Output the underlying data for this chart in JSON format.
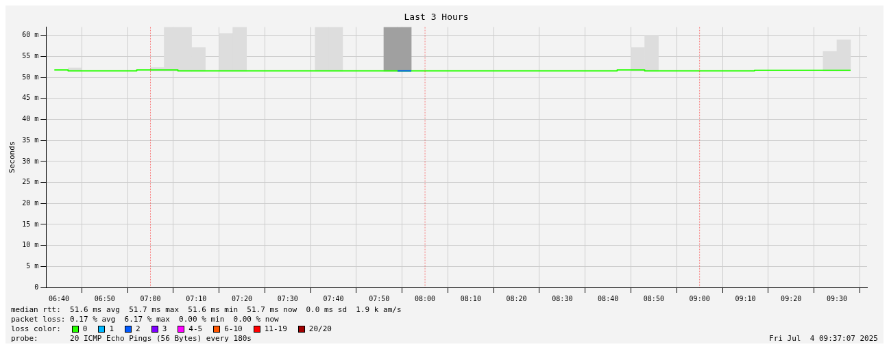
{
  "chart_data": {
    "type": "step",
    "title": "Last 3 Hours",
    "ylabel": "Seconds",
    "xlim": [
      6.62,
      9.61
    ],
    "xticks": [
      {
        "value": 6.6667,
        "label": "06:40"
      },
      {
        "value": 6.8333,
        "label": "06:50"
      },
      {
        "value": 7,
        "label": "07:00"
      },
      {
        "value": 7.1667,
        "label": "07:10"
      },
      {
        "value": 7.3333,
        "label": "07:20"
      },
      {
        "value": 7.5,
        "label": "07:30"
      },
      {
        "value": 7.6667,
        "label": "07:40"
      },
      {
        "value": 7.8333,
        "label": "07:50"
      },
      {
        "value": 8,
        "label": "08:00"
      },
      {
        "value": 8.1667,
        "label": "08:10"
      },
      {
        "value": 8.3333,
        "label": "08:20"
      },
      {
        "value": 8.5,
        "label": "08:30"
      },
      {
        "value": 8.6667,
        "label": "08:40"
      },
      {
        "value": 8.8333,
        "label": "08:50"
      },
      {
        "value": 9,
        "label": "09:00"
      },
      {
        "value": 9.1667,
        "label": "09:10"
      },
      {
        "value": 9.3333,
        "label": "09:20"
      },
      {
        "value": 9.5,
        "label": "09:30"
      }
    ],
    "ylim": [
      0,
      62
    ],
    "yticks": [
      0,
      {
        "value": 5,
        "label": "5 m"
      },
      {
        "value": 10,
        "label": "10 m"
      },
      {
        "value": 15,
        "label": "15 m"
      },
      {
        "value": 20,
        "label": "20 m"
      },
      {
        "value": 25,
        "label": "25 m"
      },
      {
        "value": 30,
        "label": "30 m"
      },
      {
        "value": 35,
        "label": "35 m"
      },
      {
        "value": 40,
        "label": "40 m"
      },
      {
        "value": 45,
        "label": "45 m"
      },
      {
        "value": 50,
        "label": "50 m"
      },
      {
        "value": 55,
        "label": "55 m"
      },
      {
        "value": 60,
        "label": "60 m"
      }
    ],
    "grid": true,
    "legend": "bottom",
    "legend_title": "loss color:",
    "series": [
      {
        "type": "bar",
        "colors": [
          "#dddddd",
          "#dddddd",
          "#dddddd",
          "#dddddd",
          "#dddddd",
          "#dddddd",
          "#dddddd",
          "#dddddd",
          "#dddddd",
          "#a0a0a0",
          "#a0a0a0",
          "#dddddd",
          "#dddddd",
          "#dddddd",
          "#dddddd"
        ],
        "x": [
          6.725,
          7.025,
          7.075,
          7.125,
          7.175,
          7.275,
          7.325,
          7.625,
          7.675,
          7.875,
          7.925,
          8.775,
          8.825,
          9.475,
          9.525
        ],
        "base": [
          51.5,
          51.5,
          51.5,
          51.5,
          51.5,
          51.5,
          51.5,
          51.5,
          51.5,
          51.5,
          51.5,
          51.5,
          51.5,
          51.5,
          51.5
        ],
        "values": [
          0.8,
          0.9,
          10.5,
          10.5,
          5.6,
          9,
          10.5,
          10.5,
          10.5,
          10.5,
          10.5,
          5.6,
          8.6,
          4.7,
          7.5
        ]
      },
      {
        "name": "0",
        "color": "#26ff00",
        "x": [
          6.65,
          6.7,
          6.75,
          6.8,
          6.85,
          6.9,
          6.95,
          7,
          7.05,
          7.1,
          7.15,
          7.2,
          7.25,
          7.3,
          7.35,
          7.4,
          7.45,
          7.5,
          7.55,
          7.6,
          7.65,
          7.7,
          7.75,
          7.8,
          7.85,
          7.9,
          7.95,
          8,
          8.05,
          8.1,
          8.15,
          8.2,
          8.25,
          8.3,
          8.35,
          8.4,
          8.45,
          8.5,
          8.55,
          8.6,
          8.65,
          8.7,
          8.75,
          8.8,
          8.85,
          8.9,
          8.95,
          9,
          9.05,
          9.1,
          9.15,
          9.2,
          9.25,
          9.3,
          9.35,
          9.4,
          9.45,
          9.5,
          9.55
        ],
        "values": [
          51.8,
          51.8,
          51.6,
          51.6,
          51.6,
          51.6,
          51.6,
          51.8,
          51.8,
          51.8,
          51.6,
          51.6,
          51.6,
          51.6,
          51.6,
          51.6,
          51.6,
          51.6,
          51.6,
          51.6,
          51.6,
          51.6,
          51.6,
          51.6,
          51.6,
          51.6,
          51.6,
          51.6,
          51.6,
          51.6,
          51.6,
          51.6,
          51.6,
          51.6,
          51.6,
          51.6,
          51.6,
          51.6,
          51.6,
          51.6,
          51.6,
          51.6,
          51.8,
          51.8,
          51.6,
          51.6,
          51.6,
          51.6,
          51.6,
          51.6,
          51.6,
          51.6,
          51.7,
          51.7,
          51.7,
          51.7,
          51.7,
          51.7,
          51.7
        ]
      },
      {
        "name": "1",
        "color": "#00b8ff"
      },
      {
        "name": "2",
        "color": "#0059ff",
        "x": [
          7.9,
          7.95
        ],
        "values": [
          51.6,
          51.6
        ]
      },
      {
        "name": "3",
        "color": "#7e00ff"
      },
      {
        "name": "4-5",
        "color": "#ff00ff"
      },
      {
        "name": "6-10",
        "color": "#ff5500"
      },
      {
        "name": "11-19",
        "color": "#ff0000"
      },
      {
        "name": "20/20",
        "color": "#a10000"
      }
    ],
    "ref_lines": [
      {
        "axis": "x",
        "value": 7,
        "color": "#ff0000",
        "line_style": "dotted"
      },
      {
        "axis": "x",
        "value": 8,
        "color": "#ff0000",
        "line_style": "dotted"
      },
      {
        "axis": "x",
        "value": 9,
        "color": "#ff0000",
        "line_style": "dotted"
      }
    ],
    "annotations": [
      "median rtt:  51.6 ms avg  51.7 ms max  51.6 ms min  51.7 ms now  0.0 ms sd  1.9 k am/s",
      "packet loss: 0.17 % avg  6.17 % max  0.00 % min  0.00 % now",
      "probe:       20 ICMP Echo Pings (56 Bytes) every 180s",
      "Fri Jul  4 09:37:07 2025"
    ]
  }
}
